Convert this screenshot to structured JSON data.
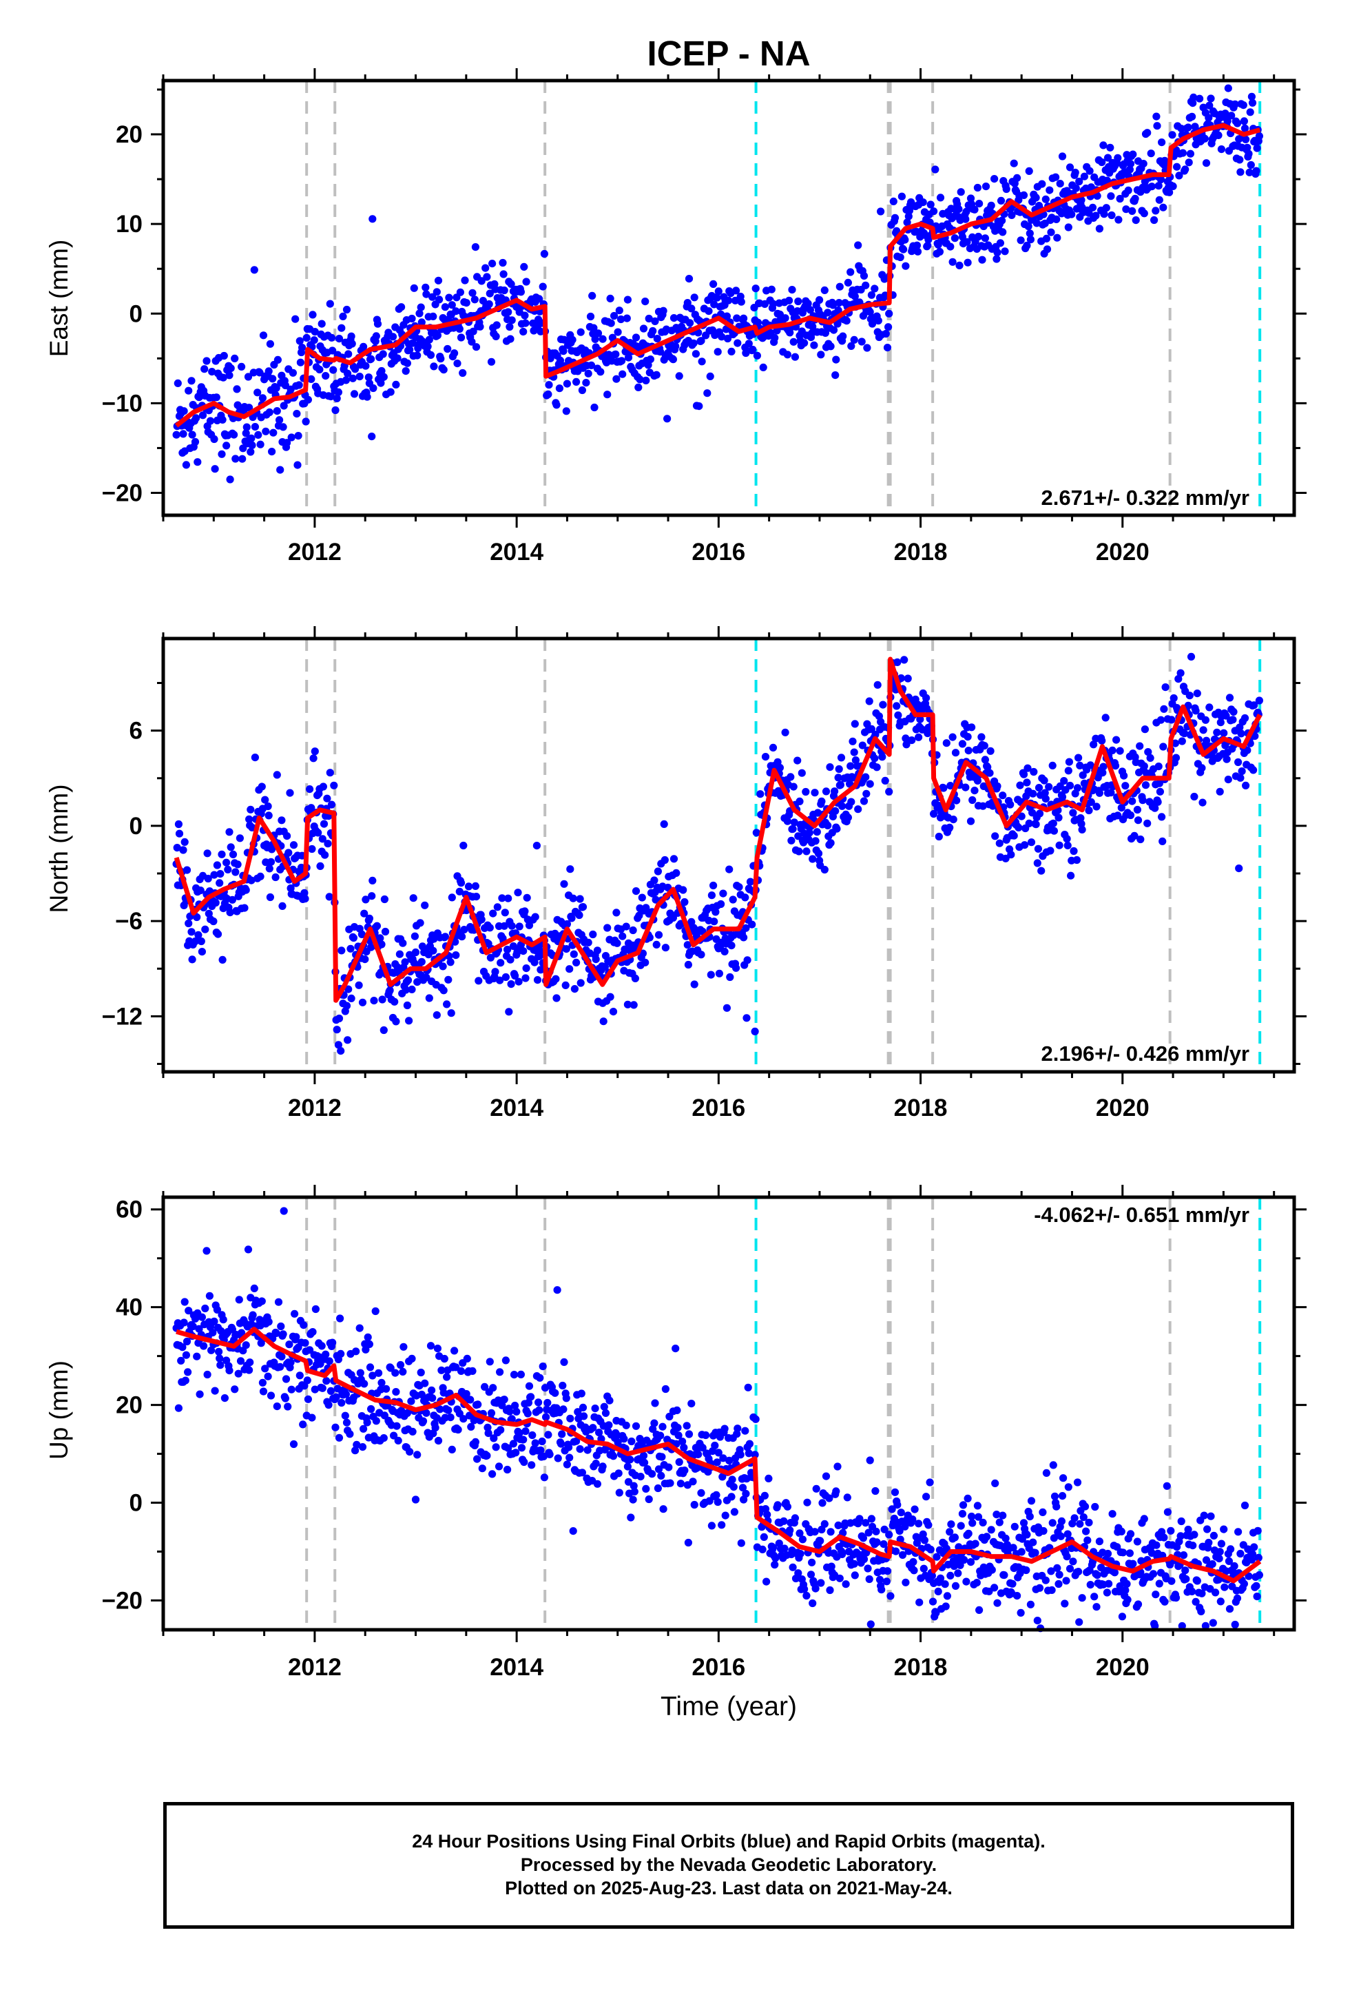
{
  "title": "ICEP - NA",
  "xlabel": "Time (year)",
  "colors": {
    "data_points": "#0000ff",
    "model_line": "#ff0000",
    "equipment_marker": "#bfbfbf",
    "earthquake_marker": "#00e5ee",
    "axes": "#000000"
  },
  "footer": {
    "line1": "24 Hour Positions Using Final Orbits (blue) and Rapid Orbits (magenta).",
    "line2": "Processed by the Nevada Geodetic Laboratory.",
    "line3": "Plotted on 2025-Aug-23. Last data on 2021-May-24."
  },
  "chart_data": [
    {
      "type": "scatter",
      "component": "east",
      "ylabel": "East (mm)",
      "xlim": [
        2010.5,
        2021.7
      ],
      "ylim": [
        -22.5,
        26
      ],
      "xticks": [
        2012,
        2014,
        2016,
        2018,
        2020
      ],
      "yticks": [
        -20,
        -10,
        0,
        10,
        20
      ],
      "rate_label": "2.671+/- 0.322 mm/yr",
      "rate_position": "bottom-right",
      "vertical_markers": {
        "equipment": [
          2011.92,
          2012.2,
          2014.28,
          2017.68,
          2017.7,
          2018.12,
          2020.47
        ],
        "earthquake": [
          2016.37,
          2021.36
        ]
      },
      "model": {
        "x": [
          2010.63,
          2010.8,
          2010.9,
          2011.0,
          2011.15,
          2011.3,
          2011.45,
          2011.6,
          2011.75,
          2011.91,
          2011.93,
          2012.05,
          2012.19,
          2012.21,
          2012.35,
          2012.55,
          2012.8,
          2013.0,
          2013.2,
          2013.4,
          2013.6,
          2013.8,
          2014.0,
          2014.15,
          2014.28,
          2014.29,
          2014.4,
          2014.6,
          2014.8,
          2015.0,
          2015.2,
          2015.4,
          2015.6,
          2015.8,
          2016.0,
          2016.2,
          2016.36,
          2016.38,
          2016.5,
          2016.7,
          2016.9,
          2017.1,
          2017.3,
          2017.5,
          2017.69,
          2017.7,
          2017.85,
          2018.0,
          2018.12,
          2018.13,
          2018.3,
          2018.5,
          2018.7,
          2018.9,
          2019.1,
          2019.3,
          2019.5,
          2019.7,
          2019.9,
          2020.1,
          2020.3,
          2020.46,
          2020.48,
          2020.6,
          2020.8,
          2021.0,
          2021.2,
          2021.36
        ],
        "y": [
          -12.5,
          -11.0,
          -10.5,
          -10.0,
          -11.0,
          -11.5,
          -10.5,
          -9.5,
          -9.3,
          -8.5,
          -4.0,
          -5.0,
          -5.2,
          -5.0,
          -5.5,
          -4.0,
          -3.5,
          -1.5,
          -1.5,
          -1.0,
          -0.5,
          0.5,
          1.5,
          0.5,
          0.8,
          -7.0,
          -6.5,
          -5.5,
          -4.5,
          -3.0,
          -4.5,
          -3.5,
          -2.5,
          -1.5,
          -0.5,
          -2.0,
          -1.5,
          -2.2,
          -1.5,
          -1.2,
          -0.5,
          -1.0,
          0.5,
          1.0,
          1.2,
          7.5,
          9.5,
          10.0,
          9.5,
          8.5,
          9.0,
          10.0,
          10.5,
          12.5,
          11.0,
          12.0,
          13.0,
          13.5,
          14.5,
          15.0,
          15.5,
          15.5,
          18.5,
          19.5,
          20.5,
          21.0,
          20.0,
          20.5
        ]
      }
    },
    {
      "type": "scatter",
      "component": "north",
      "ylabel": "North (mm)",
      "xlim": [
        2010.5,
        2021.7
      ],
      "ylim": [
        -15.5,
        11.8
      ],
      "xticks": [
        2012,
        2014,
        2016,
        2018,
        2020
      ],
      "yticks": [
        -12,
        -6,
        0,
        6
      ],
      "rate_label": "2.196+/- 0.426 mm/yr",
      "rate_position": "bottom-right",
      "vertical_markers": {
        "equipment": [
          2011.92,
          2012.2,
          2014.28,
          2017.68,
          2017.7,
          2018.12,
          2020.47
        ],
        "earthquake": [
          2016.37,
          2021.36
        ]
      },
      "model": {
        "x": [
          2010.63,
          2010.8,
          2010.95,
          2011.1,
          2011.3,
          2011.45,
          2011.6,
          2011.8,
          2011.91,
          2011.93,
          2012.05,
          2012.19,
          2012.21,
          2012.3,
          2012.55,
          2012.75,
          2012.95,
          2013.1,
          2013.3,
          2013.5,
          2013.7,
          2013.85,
          2014.0,
          2014.15,
          2014.28,
          2014.29,
          2014.5,
          2014.7,
          2014.85,
          2015.0,
          2015.2,
          2015.4,
          2015.55,
          2015.75,
          2015.95,
          2016.2,
          2016.36,
          2016.38,
          2016.55,
          2016.75,
          2016.95,
          2017.15,
          2017.35,
          2017.55,
          2017.69,
          2017.7,
          2017.8,
          2017.95,
          2018.12,
          2018.13,
          2018.25,
          2018.45,
          2018.65,
          2018.85,
          2019.05,
          2019.25,
          2019.45,
          2019.6,
          2019.8,
          2020.0,
          2020.2,
          2020.46,
          2020.48,
          2020.6,
          2020.8,
          2021.0,
          2021.2,
          2021.36
        ],
        "y": [
          -2.0,
          -5.5,
          -4.5,
          -4.0,
          -3.5,
          0.5,
          -1.0,
          -3.5,
          -3.0,
          0.5,
          1.0,
          0.8,
          -11.0,
          -10.0,
          -6.5,
          -10.0,
          -9.0,
          -9.0,
          -8.0,
          -4.5,
          -8.0,
          -7.5,
          -7.0,
          -7.5,
          -7.0,
          -10.0,
          -6.5,
          -8.5,
          -10.0,
          -8.5,
          -8.0,
          -5.0,
          -4.0,
          -7.5,
          -6.5,
          -6.5,
          -4.5,
          -2.0,
          3.5,
          1.0,
          0.0,
          1.5,
          2.5,
          5.5,
          4.5,
          10.5,
          8.5,
          7.0,
          7.0,
          3.0,
          1.0,
          4.0,
          3.0,
          0.0,
          1.5,
          1.0,
          1.5,
          1.0,
          5.0,
          1.5,
          3.0,
          3.0,
          5.5,
          7.5,
          4.5,
          5.5,
          5.0,
          7.0
        ]
      }
    },
    {
      "type": "scatter",
      "component": "up",
      "ylabel": "Up (mm)",
      "xlim": [
        2010.5,
        2021.7
      ],
      "ylim": [
        -26,
        62.5
      ],
      "xticks": [
        2012,
        2014,
        2016,
        2018,
        2020
      ],
      "yticks": [
        -20,
        0,
        20,
        40,
        60
      ],
      "rate_label": "-4.062+/- 0.651 mm/yr",
      "rate_position": "top-right",
      "vertical_markers": {
        "equipment": [
          2011.92,
          2012.2,
          2014.28,
          2017.68,
          2017.7,
          2018.12,
          2020.47
        ],
        "earthquake": [
          2016.37,
          2021.36
        ]
      },
      "model": {
        "x": [
          2010.63,
          2010.8,
          2011.0,
          2011.2,
          2011.4,
          2011.6,
          2011.8,
          2011.91,
          2011.93,
          2012.1,
          2012.19,
          2012.21,
          2012.4,
          2012.6,
          2012.8,
          2013.0,
          2013.2,
          2013.4,
          2013.6,
          2013.8,
          2014.0,
          2014.15,
          2014.28,
          2014.29,
          2014.5,
          2014.7,
          2014.9,
          2015.1,
          2015.3,
          2015.5,
          2015.7,
          2015.9,
          2016.1,
          2016.36,
          2016.38,
          2016.6,
          2016.8,
          2017.0,
          2017.2,
          2017.4,
          2017.6,
          2017.69,
          2017.7,
          2017.9,
          2018.12,
          2018.13,
          2018.3,
          2018.5,
          2018.7,
          2018.9,
          2019.1,
          2019.3,
          2019.5,
          2019.7,
          2019.9,
          2020.1,
          2020.3,
          2020.46,
          2020.48,
          2020.7,
          2020.9,
          2021.1,
          2021.36
        ],
        "y": [
          35,
          34,
          33,
          32,
          35.5,
          32,
          30,
          29,
          27,
          26,
          28,
          25,
          23,
          21,
          20.5,
          19,
          20,
          22,
          18,
          16.5,
          16,
          17,
          16,
          16.5,
          15,
          12.5,
          12,
          10,
          11,
          12,
          9,
          7.5,
          6,
          9,
          -3,
          -6,
          -9,
          -10,
          -7,
          -8.5,
          -10.5,
          -11,
          -8,
          -9,
          -12,
          -14,
          -10,
          -10,
          -11,
          -11,
          -12,
          -10,
          -8,
          -11,
          -13,
          -14,
          -12,
          -11.5,
          -11,
          -13,
          -14,
          -16,
          -12
        ]
      }
    }
  ]
}
